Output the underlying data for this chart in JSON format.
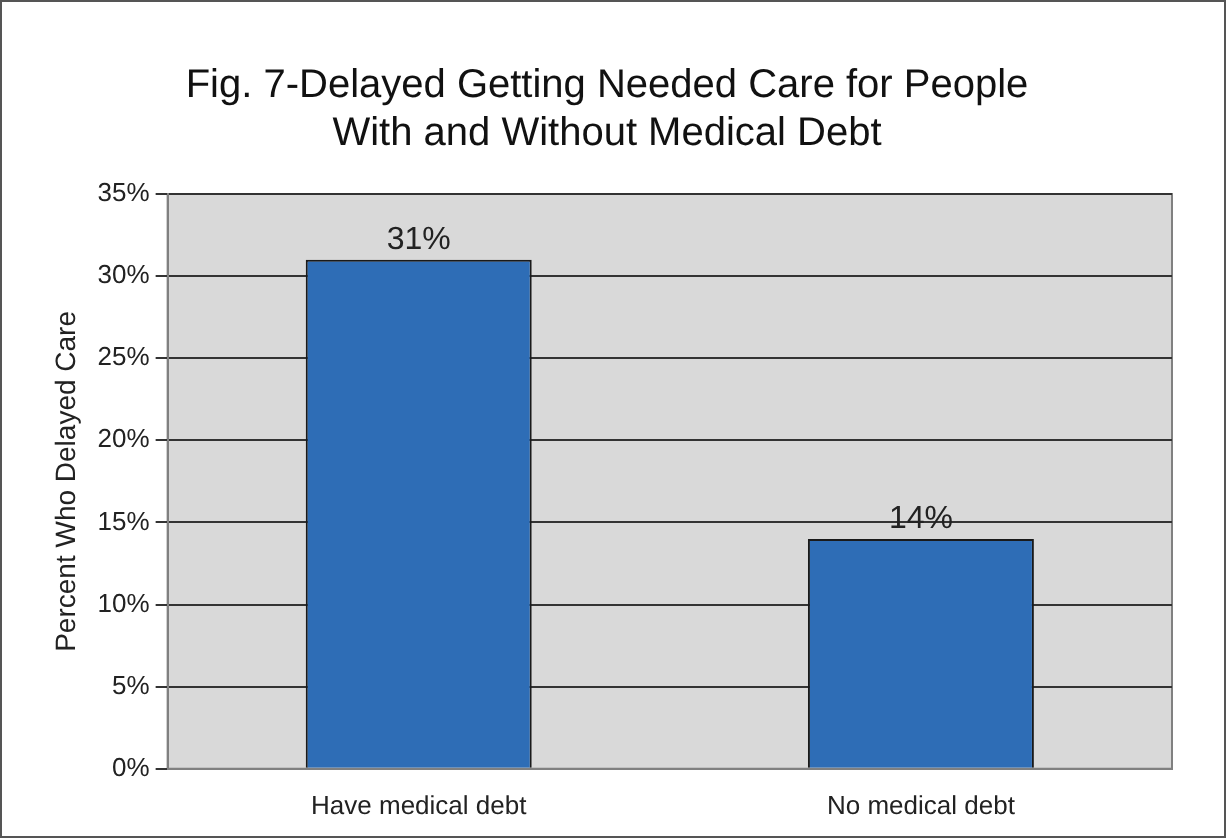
{
  "chart_data": {
    "type": "bar",
    "title": "Fig. 7-Delayed Getting Needed Care for People\nWith and Without Medical Debt",
    "ylabel": "Percent Who Delayed Care",
    "categories": [
      "Have medical debt",
      "No medical debt"
    ],
    "values": [
      31,
      14
    ],
    "color": "#2e6db6",
    "value_labels": [
      "31%",
      "14%"
    ],
    "ylim": [
      0,
      35
    ],
    "yticks": [
      {
        "value": 0,
        "label": "0%"
      },
      {
        "value": 5,
        "label": "5%"
      },
      {
        "value": 10,
        "label": "10%"
      },
      {
        "value": 15,
        "label": "15%"
      },
      {
        "value": 20,
        "label": "20%"
      },
      {
        "value": 25,
        "label": "25%"
      },
      {
        "value": 30,
        "label": "30%"
      },
      {
        "value": 35,
        "label": "35%"
      }
    ],
    "grid": "y",
    "legend": false
  }
}
